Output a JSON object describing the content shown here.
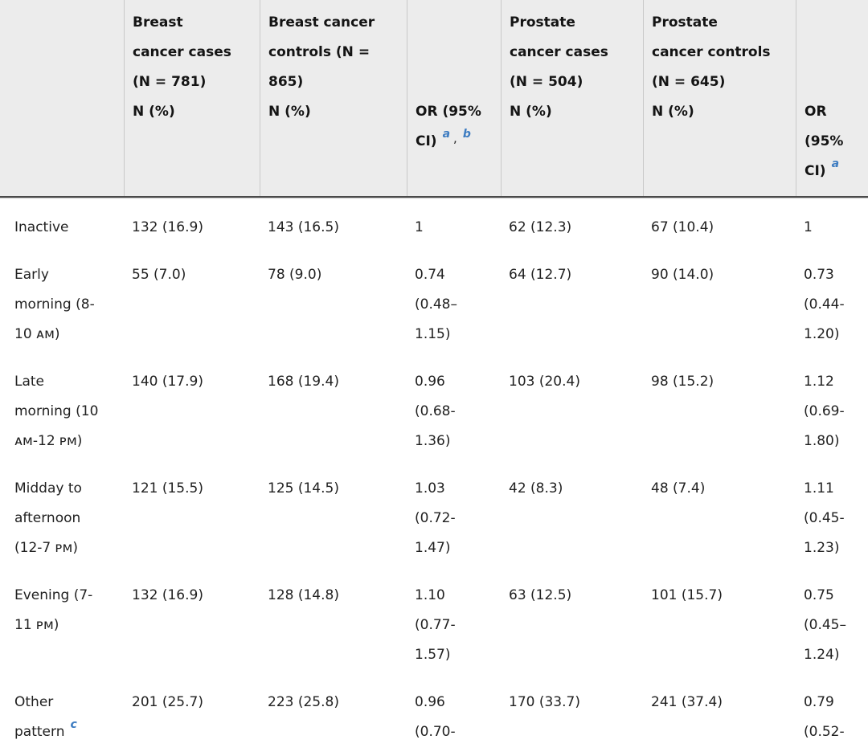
{
  "colors": {
    "header_background": "#ececec",
    "header_rule": "#4b4b4b",
    "cell_divider": "#c9c9c9",
    "body_text": "#212121",
    "footnote_accent": "#3d7cc1"
  },
  "table": {
    "header": {
      "empty_corner": "",
      "breast_cases": {
        "lines": [
          "Breast",
          "cancer cases",
          "(N = 781)",
          "N (%)"
        ]
      },
      "breast_controls": {
        "lines": [
          "Breast cancer",
          "controls (N =",
          "865)",
          "N (%)"
        ]
      },
      "or_breast": {
        "line1": "OR (95%",
        "line2": "CI)",
        "sup1": "a",
        "comma": ",",
        "sup2": "b"
      },
      "prostate_cases": {
        "lines": [
          "Prostate",
          "cancer cases",
          "(N = 504)",
          "N (%)"
        ]
      },
      "prostate_controls": {
        "lines": [
          "Prostate",
          "cancer controls",
          "(N = 645)",
          "N (%)"
        ]
      },
      "or_prostate": {
        "line1": "OR",
        "line2": "(95%",
        "line3": "CI)",
        "sup1": "a"
      }
    },
    "rows": [
      {
        "label_lines": [
          "Inactive"
        ],
        "breast_cases": [
          "132 (16.9)"
        ],
        "breast_controls": [
          "143 (16.5)"
        ],
        "or_breast": [
          "1"
        ],
        "prostate_cases": [
          "62 (12.3)"
        ],
        "prostate_controls": [
          "67 (10.4)"
        ],
        "or_prostate": [
          "1"
        ]
      },
      {
        "label_lines": [
          "Early",
          "morning (8-",
          "10 ᴀᴍ)"
        ],
        "breast_cases": [
          "55 (7.0)"
        ],
        "breast_controls": [
          "78 (9.0)"
        ],
        "or_breast": [
          "0.74",
          "(0.48–",
          "1.15)"
        ],
        "prostate_cases": [
          "64 (12.7)"
        ],
        "prostate_controls": [
          "90 (14.0)"
        ],
        "or_prostate": [
          "0.73",
          "(0.44-",
          "1.20)"
        ]
      },
      {
        "label_lines": [
          "Late",
          "morning (10",
          "ᴀᴍ-12 ᴘᴍ)"
        ],
        "breast_cases": [
          "140 (17.9)"
        ],
        "breast_controls": [
          "168 (19.4)"
        ],
        "or_breast": [
          "0.96",
          "(0.68-",
          "1.36)"
        ],
        "prostate_cases": [
          "103 (20.4)"
        ],
        "prostate_controls": [
          "98 (15.2)"
        ],
        "or_prostate": [
          "1.12",
          "(0.69-",
          "1.80)"
        ]
      },
      {
        "label_lines": [
          "Midday to",
          "afternoon",
          "(12-7 ᴘᴍ)"
        ],
        "breast_cases": [
          "121 (15.5)"
        ],
        "breast_controls": [
          "125 (14.5)"
        ],
        "or_breast": [
          "1.03",
          "(0.72-",
          "1.47)"
        ],
        "prostate_cases": [
          "42 (8.3)"
        ],
        "prostate_controls": [
          "48 (7.4)"
        ],
        "or_prostate": [
          "1.11",
          "(0.45-",
          "1.23)"
        ]
      },
      {
        "label_lines": [
          "Evening (7-",
          "11 ᴘᴍ)"
        ],
        "breast_cases": [
          "132 (16.9)"
        ],
        "breast_controls": [
          "128 (14.8)"
        ],
        "or_breast": [
          "1.10",
          "(0.77-",
          "1.57)"
        ],
        "prostate_cases": [
          "63 (12.5)"
        ],
        "prostate_controls": [
          "101 (15.7)"
        ],
        "or_prostate": [
          "0.75",
          "(0.45–",
          "1.24)"
        ]
      },
      {
        "label_lines": [
          "Other",
          "pattern"
        ],
        "label_sup": "c",
        "breast_cases": [
          "201 (25.7)"
        ],
        "breast_controls": [
          "223 (25.8)"
        ],
        "or_breast": [
          "0.96",
          "(0.70-"
        ],
        "prostate_cases": [
          "170 (33.7)"
        ],
        "prostate_controls": [
          "241 (37.4)"
        ],
        "or_prostate": [
          "0.79",
          "(0.52-"
        ]
      }
    ]
  }
}
